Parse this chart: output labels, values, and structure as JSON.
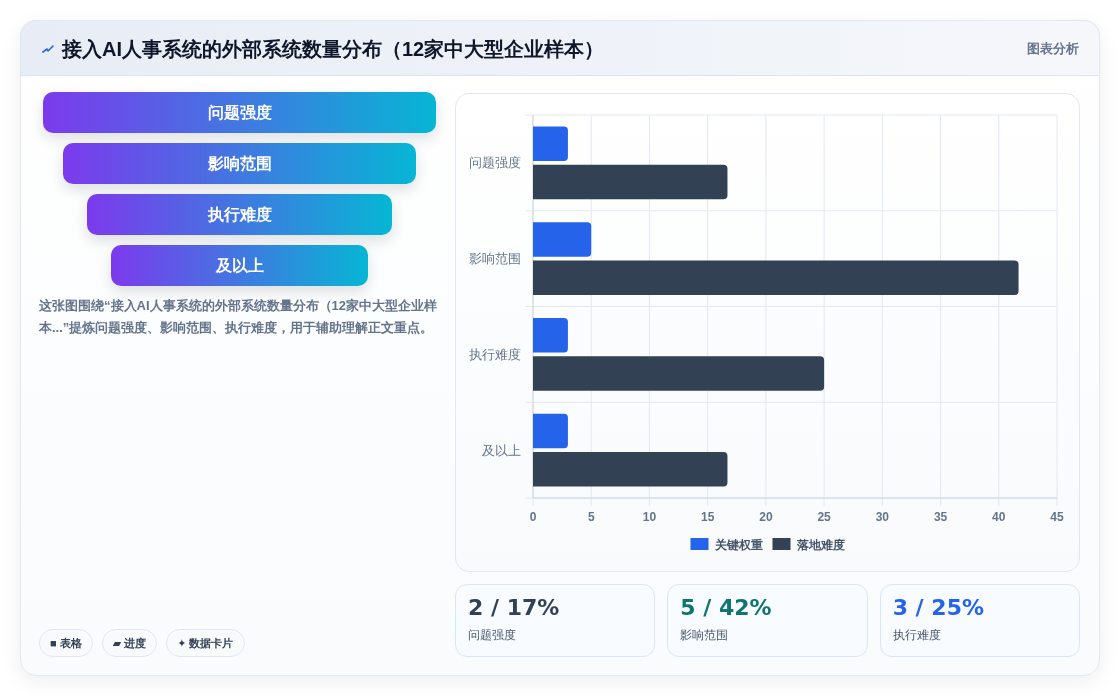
{
  "chart_data": [
    {
      "type": "other",
      "title": "接入AI人事系统的外部系统数量分布（12家中大型企业样本）",
      "categories": [
        "问题强度",
        "影响范围",
        "执行难度",
        "及以上"
      ],
      "annotations": [
        "图表分析",
        "这张图围绕“接入AI人事系统的外部系统数量分布（12家中大型企业样本...”提炼问题强度、影响范围、执行难度，用于辅助理解正文重点。",
        "■ 表格",
        "▰ 进度",
        "✦ 数据卡片"
      ]
    },
    {
      "type": "bar",
      "orientation": "horizontal",
      "categories": [
        "问题强度",
        "影响范围",
        "执行难度",
        "及以上"
      ],
      "series": [
        {
          "name": "关键权重",
          "color": "#2563eb",
          "values": [
            3,
            5,
            3,
            3
          ]
        },
        {
          "name": "落地难度",
          "color": "#334155",
          "values": [
            16.7,
            41.7,
            25,
            16.7
          ]
        }
      ],
      "xlim": [
        0,
        45
      ],
      "xticks": [
        0,
        5,
        10,
        15,
        20,
        25,
        30,
        35,
        40,
        45
      ],
      "grid": true,
      "legend": "bottom"
    },
    {
      "type": "other",
      "categories": [
        "问题强度",
        "影响范围",
        "执行难度"
      ],
      "value_labels": [
        "2 / 17%",
        "5 / 42%",
        "3 / 25%"
      ]
    }
  ]
}
